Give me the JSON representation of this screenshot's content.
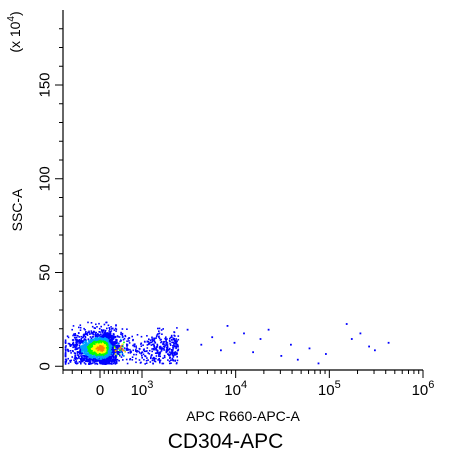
{
  "chart_data": {
    "type": "scatter",
    "title": "",
    "xlabel": "APC R660-APC-A",
    "ylabel": "SSC-A",
    "y_multiplier_label": {
      "prefix": "(x 10",
      "exponent": "4",
      "suffix": ")"
    },
    "x_scale": "biexponential",
    "y_scale": "linear",
    "xlim": [
      -400,
      1000000
    ],
    "ylim": [
      -2,
      190
    ],
    "x_ticks": [
      {
        "value": 0,
        "base": "0",
        "exp": ""
      },
      {
        "value": 1000,
        "base": "10",
        "exp": "3"
      },
      {
        "value": 10000,
        "base": "10",
        "exp": "4"
      },
      {
        "value": 100000,
        "base": "10",
        "exp": "5"
      },
      {
        "value": 1000000,
        "base": "10",
        "exp": "6"
      }
    ],
    "y_ticks": [
      {
        "value": 0,
        "label": "0"
      },
      {
        "value": 50,
        "label": "50"
      },
      {
        "value": 100,
        "label": "100"
      },
      {
        "value": 150,
        "label": "150"
      }
    ],
    "grid": false,
    "legend": "none",
    "density_colors": [
      "#0000ff",
      "#00a0ff",
      "#00ff00",
      "#ffff00",
      "#ff8000"
    ],
    "population": {
      "center_x": 20,
      "center_y": 10,
      "x_spread_lin": 180,
      "y_sd": 4.5,
      "count": 2400
    },
    "points": [
      [
        1500,
        18
      ],
      [
        2200,
        14
      ],
      [
        3000,
        20
      ],
      [
        4200,
        12
      ],
      [
        5500,
        16
      ],
      [
        6800,
        9
      ],
      [
        8000,
        22
      ],
      [
        9500,
        13
      ],
      [
        12000,
        18
      ],
      [
        15000,
        8
      ],
      [
        18000,
        15
      ],
      [
        22000,
        20
      ],
      [
        30000,
        6
      ],
      [
        38000,
        12
      ],
      [
        45000,
        4
      ],
      [
        60000,
        10
      ],
      [
        75000,
        2
      ],
      [
        90000,
        7
      ],
      [
        150000,
        23
      ],
      [
        170000,
        15
      ],
      [
        210000,
        18
      ],
      [
        260000,
        11
      ],
      [
        300000,
        9
      ],
      [
        420000,
        13
      ]
    ],
    "caption": "CD304-APC"
  }
}
